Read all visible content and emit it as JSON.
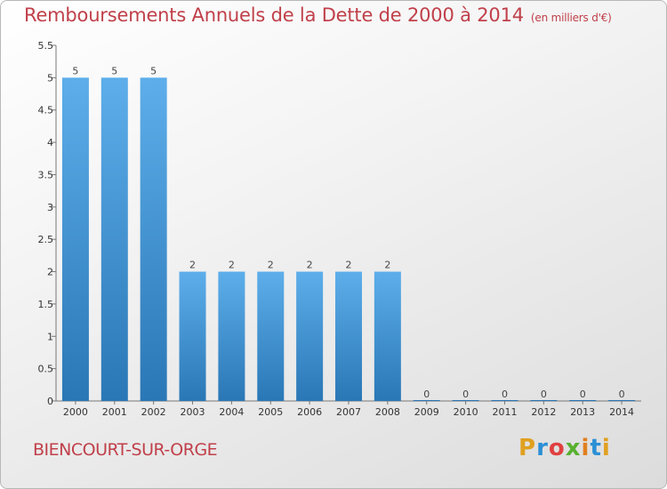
{
  "header": {
    "title": "Remboursements Annuels de la Dette de 2000 à 2014",
    "unit": "(en milliers d'€)"
  },
  "footer": {
    "commune": "BIENCOURT-SUR-ORGE",
    "logo": "Proxiti"
  },
  "colors": {
    "title": "#c0404a",
    "bar_top": "#5daeea",
    "bar_bottom": "#2a77b6",
    "logo_letters": [
      "#e0a020",
      "#2b8fd6",
      "#e04040",
      "#58b030",
      "#e08020",
      "#2b8fd6",
      "#e0a020"
    ]
  },
  "chart_data": {
    "type": "bar",
    "title": "Remboursements Annuels de la Dette de 2000 à 2014",
    "subtitle": "(en milliers d'€)",
    "categories": [
      "2000",
      "2001",
      "2002",
      "2003",
      "2004",
      "2005",
      "2006",
      "2007",
      "2008",
      "2009",
      "2010",
      "2011",
      "2012",
      "2013",
      "2014"
    ],
    "values": [
      5,
      5,
      5,
      2,
      2,
      2,
      2,
      2,
      2,
      0,
      0,
      0,
      0,
      0,
      0
    ],
    "data_labels": [
      "5",
      "5",
      "5",
      "2",
      "2",
      "2",
      "2",
      "2",
      "2",
      "0",
      "0",
      "0",
      "0",
      "0",
      "0"
    ],
    "ylim": [
      0,
      5.5
    ],
    "yticks": [
      "0",
      "0.5",
      "1",
      "1.5",
      "2",
      "2.5",
      "3",
      "3.5",
      "4",
      "4.5",
      "5",
      "5.5"
    ],
    "ytick_values": [
      0,
      0.5,
      1,
      1.5,
      2,
      2.5,
      3,
      3.5,
      4,
      4.5,
      5,
      5.5
    ],
    "grid": false
  }
}
